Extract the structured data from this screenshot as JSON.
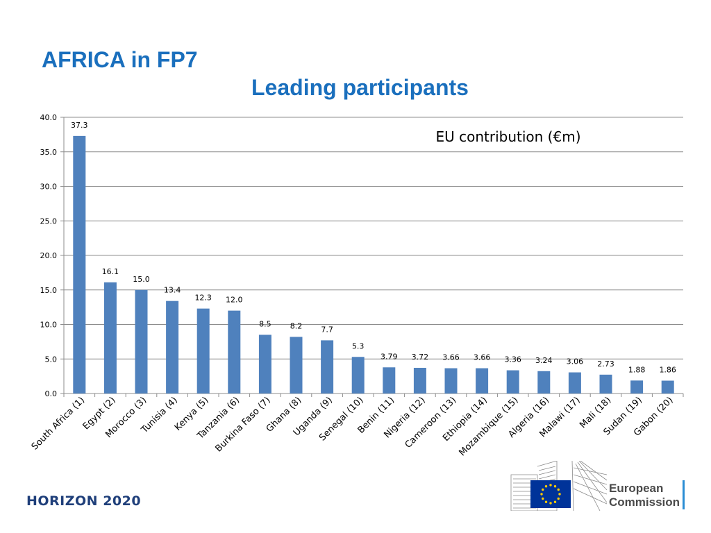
{
  "slide": {
    "title_line1": "AFRICA in FP7",
    "title_line2": "Leading participants"
  },
  "footer": {
    "program": "HORIZON 2020",
    "logo_line1": "European",
    "logo_line2": "Commission"
  },
  "colors": {
    "title": "#1a6fbd",
    "bar": "#4f81bd",
    "footer_text": "#1f3f7a",
    "eu_flag": "#003399",
    "eu_stars": "#ffcc00"
  },
  "chart_data": {
    "type": "bar",
    "title": "EU contribution (€m)",
    "categories": [
      "South Africa (1)",
      "Egypt (2)",
      "Morocco (3)",
      "Tunisia (4)",
      "Kenya (5)",
      "Tanzania (6)",
      "Burkina Faso (7)",
      "Ghana (8)",
      "Uganda (9)",
      "Senegal (10)",
      "Benin (11)",
      "Nigeria (12)",
      "Cameroon (13)",
      "Ethiopia (14)",
      "Mozambique (15)",
      "Algeria (16)",
      "Malawi (17)",
      "Mali (18)",
      "Sudan (19)",
      "Gabon (20)"
    ],
    "values": [
      37.3,
      16.1,
      15.0,
      13.4,
      12.3,
      12.0,
      8.5,
      8.2,
      7.7,
      5.3,
      3.79,
      3.72,
      3.66,
      3.66,
      3.36,
      3.24,
      3.06,
      2.73,
      1.88,
      1.86
    ],
    "value_labels": [
      "37.3",
      "16.1",
      "15.0",
      "13.4",
      "12.3",
      "12.0",
      "8.5",
      "8.2",
      "7.7",
      "5.3",
      "3.79",
      "3.72",
      "3.66",
      "3.66",
      "3.36",
      "3.24",
      "3.06",
      "2.73",
      "1.88",
      "1.86"
    ],
    "ylim": [
      0,
      40
    ],
    "yticks": [
      "0.0",
      "5.0",
      "10.0",
      "15.0",
      "20.0",
      "25.0",
      "30.0",
      "35.0",
      "40.0"
    ],
    "grid": true,
    "xlabel": "",
    "ylabel": ""
  }
}
